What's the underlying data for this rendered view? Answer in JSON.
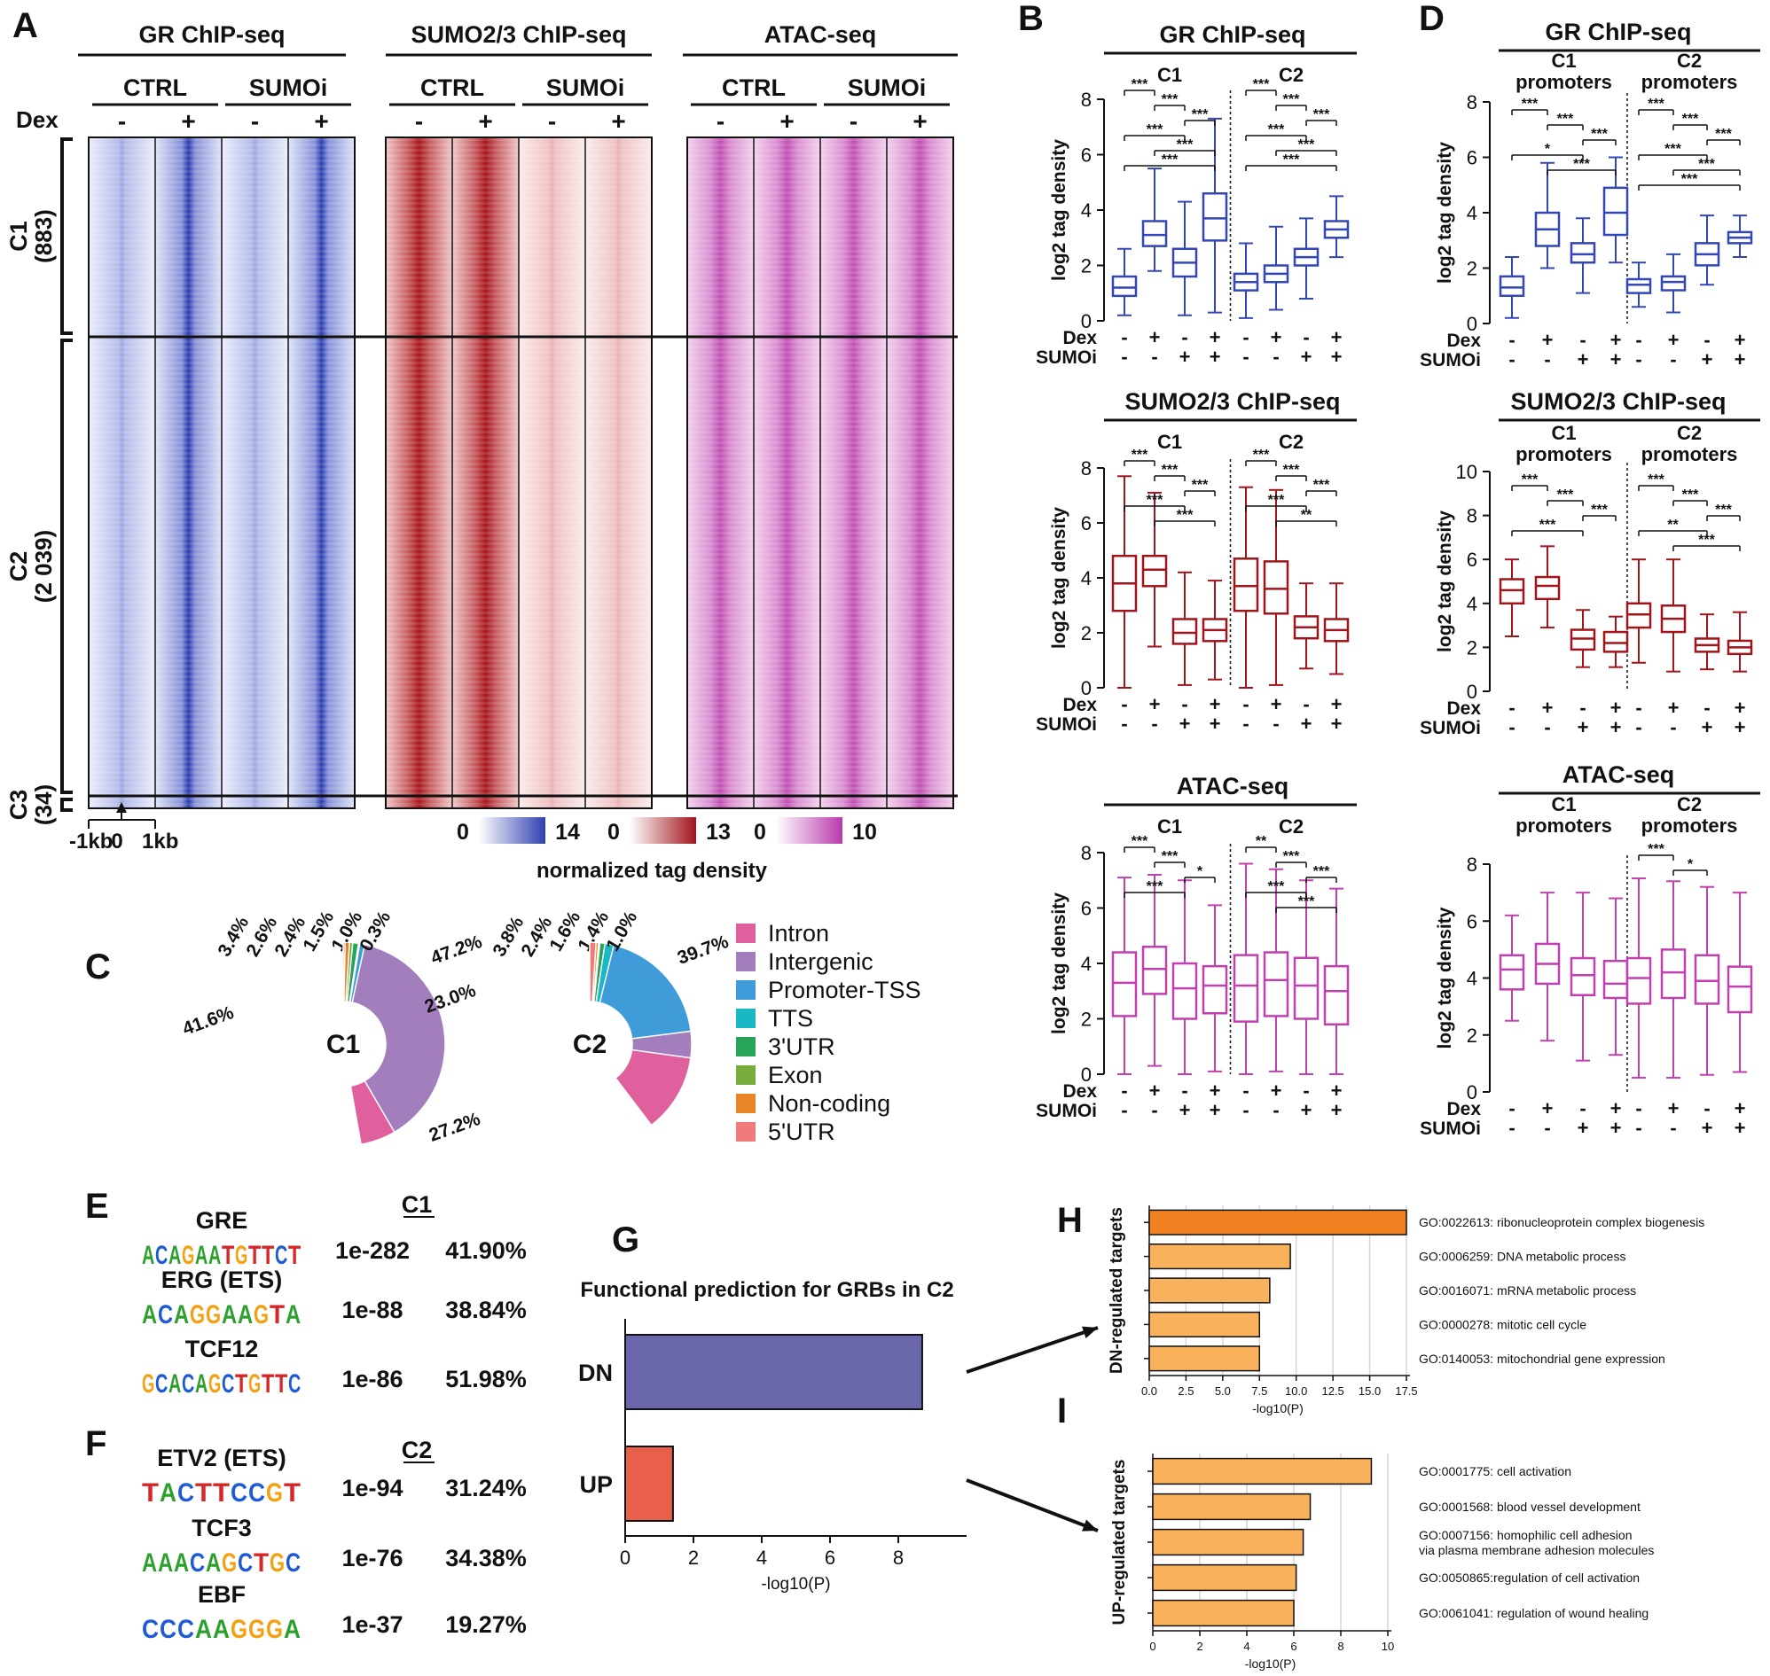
{
  "colors": {
    "blue": "#3346b5",
    "red": "#a0141b",
    "magenta": "#c040b0",
    "orange_dark": "#f08020",
    "orange_light": "#f9b15c",
    "purple_bar": "#6a67ad",
    "red_bar": "#e8604a"
  },
  "panelA": {
    "letter": "A",
    "headers": [
      "GR ChIP-seq",
      "SUMO2/3 ChIP-seq",
      "ATAC-seq"
    ],
    "sub": [
      "CTRL",
      "SUMOi",
      "CTRL",
      "SUMOi",
      "CTRL",
      "SUMOi"
    ],
    "dex_label": "Dex",
    "signs": [
      "-",
      "+",
      "-",
      "+",
      "-",
      "+",
      "-",
      "+",
      "-",
      "+",
      "-",
      "+"
    ],
    "clusters": [
      {
        "name": "C1",
        "count": "(883)"
      },
      {
        "name": "C2",
        "count": "(2 039)"
      },
      {
        "name": "C3",
        "count": "(34)"
      }
    ],
    "axis": {
      "left": "-1kb",
      "center": "0",
      "right": "1kb"
    },
    "scales": [
      {
        "min": "0",
        "max": "14"
      },
      {
        "min": "0",
        "max": "13"
      },
      {
        "min": "0",
        "max": "10"
      }
    ],
    "scale_label": "normalized tag density"
  },
  "panelB": {
    "letter": "B",
    "plots": [
      {
        "title": "GR ChIP-seq",
        "groups": [
          "C1",
          "C2"
        ],
        "ylabel": "log2 tag density",
        "ymax": 8,
        "boxes": [
          {
            "min": 0.2,
            "q1": 0.9,
            "med": 1.2,
            "q3": 1.6,
            "max": 2.6
          },
          {
            "min": 1.8,
            "q1": 2.7,
            "med": 3.1,
            "q3": 3.6,
            "max": 5.5
          },
          {
            "min": 0.2,
            "q1": 1.6,
            "med": 2.1,
            "q3": 2.6,
            "max": 4.3
          },
          {
            "min": 0.3,
            "q1": 2.9,
            "med": 3.7,
            "q3": 4.6,
            "max": 7.3
          },
          {
            "min": 0.1,
            "q1": 1.1,
            "med": 1.4,
            "q3": 1.7,
            "max": 2.8
          },
          {
            "min": 0.4,
            "q1": 1.4,
            "med": 1.7,
            "q3": 2.0,
            "max": 3.4
          },
          {
            "min": 0.8,
            "q1": 2.0,
            "med": 2.3,
            "q3": 2.6,
            "max": 3.7
          },
          {
            "min": 2.3,
            "q1": 3.0,
            "med": 3.3,
            "q3": 3.6,
            "max": 4.5
          }
        ],
        "sig_c1": [
          "***",
          "***",
          "***",
          "***",
          "***",
          "***"
        ],
        "sig_c2": [
          "***",
          "***",
          "***",
          "***",
          "***",
          "***"
        ]
      },
      {
        "title": "SUMO2/3 ChIP-seq",
        "groups": [
          "C1",
          "C2"
        ],
        "ylabel": "log2 tag density",
        "ymax": 8,
        "boxes": [
          {
            "min": 0.0,
            "q1": 2.8,
            "med": 3.8,
            "q3": 4.8,
            "max": 7.7
          },
          {
            "min": 1.5,
            "q1": 3.7,
            "med": 4.3,
            "q3": 4.8,
            "max": 7.1
          },
          {
            "min": 0.1,
            "q1": 1.6,
            "med": 2.0,
            "q3": 2.5,
            "max": 4.2
          },
          {
            "min": 0.3,
            "q1": 1.7,
            "med": 2.1,
            "q3": 2.5,
            "max": 3.9
          },
          {
            "min": 0.0,
            "q1": 2.8,
            "med": 3.7,
            "q3": 4.7,
            "max": 7.3
          },
          {
            "min": 0.1,
            "q1": 2.7,
            "med": 3.6,
            "q3": 4.6,
            "max": 7.2
          },
          {
            "min": 0.7,
            "q1": 1.8,
            "med": 2.2,
            "q3": 2.6,
            "max": 3.8
          },
          {
            "min": 0.5,
            "q1": 1.7,
            "med": 2.1,
            "q3": 2.5,
            "max": 3.8
          }
        ],
        "sig_c1": [
          "***",
          "***",
          "***",
          "***",
          "***"
        ],
        "sig_c2": [
          "***",
          "***",
          "***",
          "***",
          "**"
        ]
      },
      {
        "title": "ATAC-seq",
        "groups": [
          "C1",
          "C2"
        ],
        "ylabel": "log2 tag density",
        "ymax": 8,
        "boxes": [
          {
            "min": 0.0,
            "q1": 2.1,
            "med": 3.3,
            "q3": 4.4,
            "max": 7.1
          },
          {
            "min": 0.3,
            "q1": 2.9,
            "med": 3.8,
            "q3": 4.6,
            "max": 7.2
          },
          {
            "min": 0.0,
            "q1": 2.0,
            "med": 3.1,
            "q3": 4.0,
            "max": 7.0
          },
          {
            "min": 0.1,
            "q1": 2.2,
            "med": 3.2,
            "q3": 3.9,
            "max": 6.1
          },
          {
            "min": 0.0,
            "q1": 1.9,
            "med": 3.2,
            "q3": 4.3,
            "max": 7.6
          },
          {
            "min": 0.1,
            "q1": 2.1,
            "med": 3.4,
            "q3": 4.4,
            "max": 7.4
          },
          {
            "min": 0.0,
            "q1": 2.0,
            "med": 3.2,
            "q3": 4.2,
            "max": 7.0
          },
          {
            "min": 0.0,
            "q1": 1.8,
            "med": 3.0,
            "q3": 3.9,
            "max": 6.7
          }
        ],
        "sig_c1": [
          "***",
          "***",
          "*",
          "***"
        ],
        "sig_c2": [
          "**",
          "***",
          "***",
          "***",
          "***"
        ]
      }
    ],
    "dex_label": "Dex",
    "sumoi_label": "SUMOi",
    "dex_signs": [
      "-",
      "+",
      "-",
      "+",
      "-",
      "+",
      "-",
      "+"
    ],
    "sumoi_signs": [
      "-",
      "-",
      "+",
      "+",
      "-",
      "-",
      "+",
      "+"
    ],
    "ticks": [
      "0",
      "2",
      "4",
      "6",
      "8"
    ]
  },
  "panelD": {
    "letter": "D",
    "plots": [
      {
        "title": "GR ChIP-seq",
        "groups": [
          "C1\npromoters",
          "C2\npromoters"
        ],
        "ylabel": "log2 tag density",
        "ymax": 8,
        "ticks": [
          "0",
          "2",
          "4",
          "6",
          "8"
        ],
        "boxes": [
          {
            "min": 0.2,
            "q1": 1.0,
            "med": 1.3,
            "q3": 1.7,
            "max": 2.4
          },
          {
            "min": 2.0,
            "q1": 2.8,
            "med": 3.4,
            "q3": 4.0,
            "max": 5.8
          },
          {
            "min": 1.1,
            "q1": 2.2,
            "med": 2.5,
            "q3": 2.9,
            "max": 3.8
          },
          {
            "min": 2.2,
            "q1": 3.2,
            "med": 4.0,
            "q3": 4.9,
            "max": 6.0
          },
          {
            "min": 0.6,
            "q1": 1.1,
            "med": 1.4,
            "q3": 1.6,
            "max": 2.2
          },
          {
            "min": 0.4,
            "q1": 1.2,
            "med": 1.5,
            "q3": 1.7,
            "max": 2.5
          },
          {
            "min": 1.4,
            "q1": 2.1,
            "med": 2.5,
            "q3": 2.9,
            "max": 3.9
          },
          {
            "min": 2.4,
            "q1": 2.9,
            "med": 3.1,
            "q3": 3.3,
            "max": 3.9
          }
        ],
        "sig_c1": [
          "***",
          "***",
          "***",
          "*",
          "***"
        ],
        "sig_c2": [
          "***",
          "***",
          "***",
          "***",
          "***",
          "***"
        ]
      },
      {
        "title": "SUMO2/3 ChIP-seq",
        "groups": [
          "C1\npromoters",
          "C2\npromoters"
        ],
        "ylabel": "log2 tag density",
        "ymax": 10,
        "ticks": [
          "0",
          "2",
          "4",
          "6",
          "8",
          "10"
        ],
        "boxes": [
          {
            "min": 2.5,
            "q1": 4.0,
            "med": 4.6,
            "q3": 5.1,
            "max": 6.0
          },
          {
            "min": 2.9,
            "q1": 4.2,
            "med": 4.8,
            "q3": 5.2,
            "max": 6.6
          },
          {
            "min": 1.1,
            "q1": 1.9,
            "med": 2.4,
            "q3": 2.8,
            "max": 3.7
          },
          {
            "min": 1.1,
            "q1": 1.8,
            "med": 2.2,
            "q3": 2.7,
            "max": 3.4
          },
          {
            "min": 1.3,
            "q1": 2.9,
            "med": 3.5,
            "q3": 4.0,
            "max": 6.0
          },
          {
            "min": 0.9,
            "q1": 2.7,
            "med": 3.3,
            "q3": 3.9,
            "max": 6.0
          },
          {
            "min": 1.0,
            "q1": 1.8,
            "med": 2.1,
            "q3": 2.4,
            "max": 3.5
          },
          {
            "min": 0.9,
            "q1": 1.7,
            "med": 2.0,
            "q3": 2.3,
            "max": 3.6
          }
        ],
        "sig_c1": [
          "***",
          "***",
          "***",
          "***"
        ],
        "sig_c2": [
          "***",
          "***",
          "***",
          "**",
          "***"
        ]
      },
      {
        "title": "ATAC-seq",
        "groups": [
          "C1\npromoters",
          "C2\npromoters"
        ],
        "ylabel": "log2 tag density",
        "ymax": 8,
        "ticks": [
          "0",
          "2",
          "4",
          "6",
          "8"
        ],
        "boxes": [
          {
            "min": 2.5,
            "q1": 3.6,
            "med": 4.3,
            "q3": 4.8,
            "max": 6.2
          },
          {
            "min": 1.8,
            "q1": 3.8,
            "med": 4.5,
            "q3": 5.2,
            "max": 7.0
          },
          {
            "min": 1.1,
            "q1": 3.4,
            "med": 4.1,
            "q3": 4.7,
            "max": 7.0
          },
          {
            "min": 1.3,
            "q1": 3.3,
            "med": 3.8,
            "q3": 4.6,
            "max": 6.8
          },
          {
            "min": 0.5,
            "q1": 3.1,
            "med": 4.0,
            "q3": 4.7,
            "max": 7.5
          },
          {
            "min": 0.5,
            "q1": 3.3,
            "med": 4.2,
            "q3": 5.0,
            "max": 7.4
          },
          {
            "min": 0.6,
            "q1": 3.1,
            "med": 3.9,
            "q3": 4.8,
            "max": 7.2
          },
          {
            "min": 0.7,
            "q1": 2.8,
            "med": 3.7,
            "q3": 4.4,
            "max": 7.0
          }
        ],
        "sig_c1": [],
        "sig_c2": [
          "***",
          "*"
        ]
      }
    ]
  },
  "panelC": {
    "letter": "C",
    "donuts": [
      {
        "label": "C1",
        "pcts": [
          47.2,
          41.6,
          3.4,
          2.6,
          2.4,
          1.5,
          1.0,
          0.3
        ],
        "labels": [
          "47.2%",
          "41.6%",
          "3.4%",
          "2.6%",
          "2.4%",
          "1.5%",
          "1.0%",
          "0.3%"
        ]
      },
      {
        "label": "C2",
        "pcts": [
          39.7,
          27.2,
          23.0,
          3.8,
          2.4,
          1.6,
          1.4,
          1.0
        ],
        "labels": [
          "39.7%",
          "27.2%",
          "23.0%",
          "3.8%",
          "2.4%",
          "1.6%",
          "1.4%",
          "1.0%"
        ]
      }
    ],
    "legend": [
      {
        "label": "Intron",
        "color": "#e0609e"
      },
      {
        "label": "Intergenic",
        "color": "#a27fbc"
      },
      {
        "label": "Promoter-TSS",
        "color": "#3f9cd9"
      },
      {
        "label": "TTS",
        "color": "#1ab7c4"
      },
      {
        "label": "3'UTR",
        "color": "#27a35a"
      },
      {
        "label": "Exon",
        "color": "#78ad3d"
      },
      {
        "label": "Non-coding",
        "color": "#e88526"
      },
      {
        "label": "5'UTR",
        "color": "#f07b7b"
      }
    ]
  },
  "panelE": {
    "letter": "E",
    "header": "C1",
    "rows": [
      {
        "name": "GRE",
        "motif": "ACAGAATGTTCT",
        "pval": "1e-282",
        "pct": "41.90%"
      },
      {
        "name": "ERG (ETS)",
        "motif": "ACAGGAAGTA",
        "pval": "1e-88",
        "pct": "38.84%"
      },
      {
        "name": "TCF12",
        "motif": "GCACAGCTGTTC",
        "pval": "1e-86",
        "pct": "51.98%"
      }
    ]
  },
  "panelF": {
    "letter": "F",
    "header": "C2",
    "rows": [
      {
        "name": "ETV2 (ETS)",
        "motif": "TACTTCCGT",
        "pval": "1e-94",
        "pct": "31.24%"
      },
      {
        "name": "TCF3",
        "motif": "AAACAGCTGC",
        "pval": "1e-76",
        "pct": "34.38%"
      },
      {
        "name": "EBF",
        "motif": "CCCAAGGGA",
        "pval": "1e-37",
        "pct": "19.27%"
      }
    ]
  },
  "panelG": {
    "letter": "G",
    "chart_data": {
      "type": "bar",
      "title": "Functional prediction for GRBs in C2",
      "categories": [
        "DN",
        "UP"
      ],
      "values": [
        8.7,
        1.4
      ],
      "xlabel": "-log10(P)",
      "xlim": [
        0,
        10
      ],
      "ticks": [
        "0",
        "2",
        "4",
        "6",
        "8"
      ]
    }
  },
  "panelH": {
    "letter": "H",
    "chart_data": {
      "type": "bar",
      "ylabel": "DN-regulated targets",
      "xlabel": "-log10(P)",
      "xlim": [
        0,
        17.5
      ],
      "ticks": [
        "0.0",
        "2.5",
        "5.0",
        "7.5",
        "10.0",
        "12.5",
        "15.0",
        "17.5"
      ],
      "categories": [
        "GO:0022613: ribonucleoprotein complex biogenesis",
        "GO:0006259: DNA metabolic process",
        "GO:0016071: mRNA metabolic process",
        "GO:0000278: mitotic cell cycle",
        "GO:0140053: mitochondrial gene expression"
      ],
      "values": [
        17.5,
        9.6,
        8.2,
        7.5,
        7.5
      ]
    }
  },
  "panelI": {
    "letter": "I",
    "chart_data": {
      "type": "bar",
      "ylabel": "UP-regulated targets",
      "xlabel": "-log10(P)",
      "xlim": [
        0,
        10
      ],
      "ticks": [
        "0",
        "2",
        "4",
        "6",
        "8",
        "10"
      ],
      "categories": [
        "GO:0001775: cell activation",
        "GO:0001568: blood vessel development",
        "GO:0007156: homophilic cell adhesion\nvia plasma membrane adhesion molecules",
        "GO:0050865:regulation of cell activation",
        "GO:0061041: regulation of wound healing"
      ],
      "values": [
        9.3,
        6.7,
        6.4,
        6.1,
        6.0
      ]
    }
  }
}
